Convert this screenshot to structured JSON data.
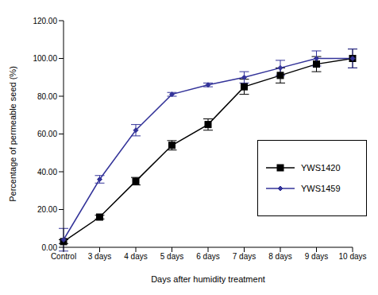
{
  "chart_data": {
    "type": "line",
    "x_label": "Days after humidity treatment",
    "y_label": "Percentage of permeable seed (%)",
    "categories": [
      "Control",
      "3 days",
      "4 days",
      "5 days",
      "6 days",
      "7 days",
      "8 days",
      "9 days",
      "10 days"
    ],
    "series": [
      {
        "name": "YWS1420",
        "color": "#000000",
        "marker": "square",
        "values": [
          3,
          16,
          35,
          54,
          65,
          85,
          91,
          97,
          100
        ],
        "errors": [
          1,
          1,
          2,
          2.5,
          3,
          4,
          4,
          4,
          5
        ]
      },
      {
        "name": "YWS1459",
        "color": "#333399",
        "marker": "diamond",
        "values": [
          4,
          36,
          62,
          81,
          86,
          90,
          95,
          100,
          100
        ],
        "errors": [
          6,
          2,
          3,
          1,
          1,
          3,
          4,
          4,
          5
        ]
      }
    ],
    "ylim": [
      0,
      120
    ],
    "yticks": [
      {
        "value": 0,
        "label": "0.00"
      },
      {
        "value": 20,
        "label": "20.00"
      },
      {
        "value": 40,
        "label": "40.00"
      },
      {
        "value": 60,
        "label": "60.00"
      },
      {
        "value": 80,
        "label": "80.00"
      },
      {
        "value": 100,
        "label": "100.00"
      },
      {
        "value": 120,
        "label": "120.00"
      }
    ],
    "grid": false,
    "legend": "right"
  }
}
